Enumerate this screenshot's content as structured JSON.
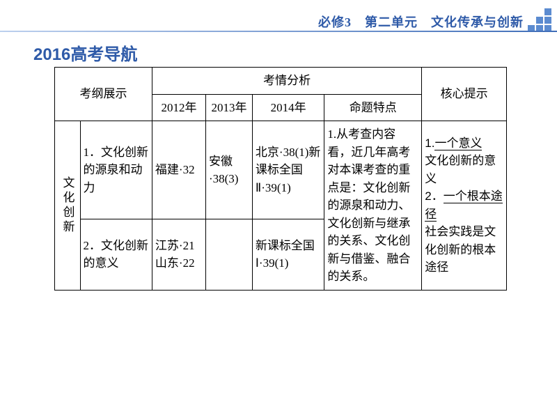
{
  "header": {
    "text": "必修3　第二单元　文化传承与创新",
    "color": "#2e5aa8"
  },
  "title": {
    "text": "2016高考导航",
    "color": "#2e5aa8"
  },
  "table": {
    "header": {
      "outline": "考纲展示",
      "analysis": "考情分析",
      "core": "核心提示",
      "y2012": "2012年",
      "y2013": "2013年",
      "y2014": "2014年",
      "feature": "命题特点"
    },
    "category": "文化创新",
    "rows": [
      {
        "outline": "1．文化创新的源泉和动力",
        "y2012": "福建·32",
        "y2013": "安徽·38(3)",
        "y2014": "北京·38(1)新课标全国Ⅱ·39(1)"
      },
      {
        "outline": "2．文化创新的意义",
        "y2012": "江苏·21山东·22",
        "y2013": "",
        "y2014": "新课标全国Ⅰ·39(1)"
      }
    ],
    "feature": "1.从考查内容看，近几年高考对本课考查的重点是：文化创新的源泉和动力、文化创新与继承的关系、文化创新与借鉴、融合的关系。",
    "core": {
      "p1a": "1.",
      "p1u": "一个意义",
      "p1b": "文化创新的意义",
      "p2a": "2．",
      "p2u": "一个根本途径",
      "p2b": "社会实践是文化创新的根本途径"
    }
  },
  "style": {
    "border_color": "#000000",
    "header_color": "#2e5aa8",
    "deco_color": "#5b8bd0",
    "bg": "#ffffff",
    "font_body": 17,
    "font_title": 24,
    "font_header": 18
  }
}
